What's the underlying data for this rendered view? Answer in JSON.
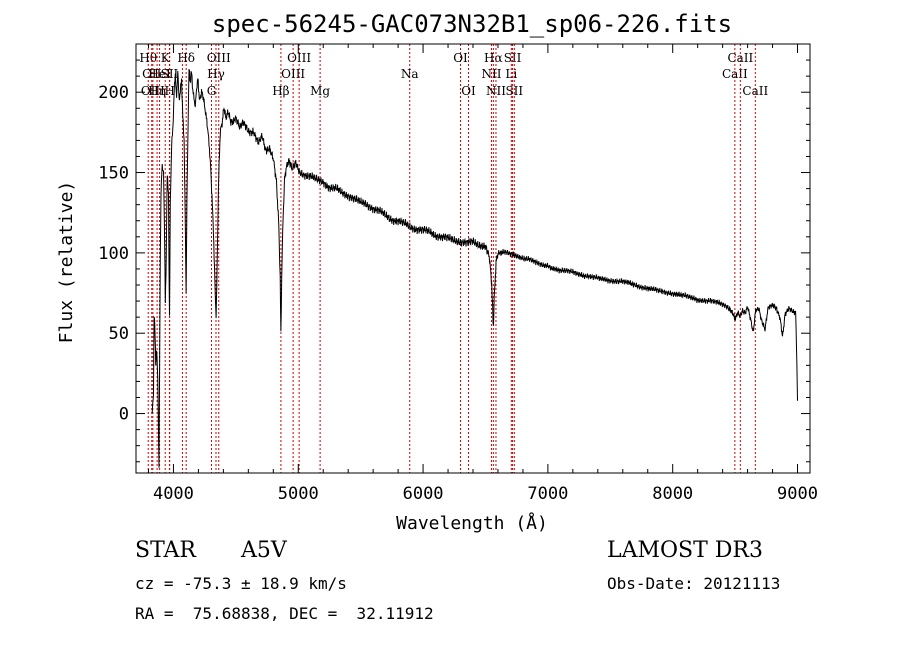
{
  "chart_data": {
    "type": "line",
    "title": "spec-56245-GAC073N32B1_sp06-226.fits",
    "xlabel": "Wavelength (Å)",
    "ylabel": "Flux (relative)",
    "xlim": [
      3700,
      9100
    ],
    "ylim": [
      -37,
      230
    ],
    "xticks": [
      4000,
      5000,
      6000,
      7000,
      8000,
      9000
    ],
    "xtick_labels": [
      "4000",
      "5000",
      "6000",
      "7000",
      "8000",
      "9000"
    ],
    "yticks": [
      0,
      50,
      100,
      150,
      200
    ],
    "ytick_labels": [
      "0",
      "50",
      "100",
      "150",
      "200"
    ],
    "series": [
      {
        "name": "spectrum",
        "points": [
          [
            3830,
            2
          ],
          [
            3840,
            10
          ],
          [
            3845,
            62
          ],
          [
            3850,
            58
          ],
          [
            3858,
            30
          ],
          [
            3865,
            42
          ],
          [
            3875,
            20
          ],
          [
            3884,
            -35
          ],
          [
            3890,
            35
          ],
          [
            3895,
            100
          ],
          [
            3900,
            138
          ],
          [
            3910,
            155
          ],
          [
            3920,
            150
          ],
          [
            3930,
            105
          ],
          [
            3935,
            70
          ],
          [
            3940,
            85
          ],
          [
            3950,
            150
          ],
          [
            3960,
            135
          ],
          [
            3968,
            60
          ],
          [
            3975,
            130
          ],
          [
            3985,
            168
          ],
          [
            3995,
            175
          ],
          [
            4005,
            200
          ],
          [
            4015,
            212
          ],
          [
            4025,
            195
          ],
          [
            4035,
            215
          ],
          [
            4045,
            195
          ],
          [
            4055,
            200
          ],
          [
            4065,
            208
          ],
          [
            4075,
            185
          ],
          [
            4085,
            170
          ],
          [
            4095,
            118
          ],
          [
            4101,
            76
          ],
          [
            4108,
            130
          ],
          [
            4118,
            185
          ],
          [
            4125,
            215
          ],
          [
            4135,
            206
          ],
          [
            4145,
            212
          ],
          [
            4155,
            202
          ],
          [
            4165,
            196
          ],
          [
            4175,
            190
          ],
          [
            4185,
            203
          ],
          [
            4195,
            208
          ],
          [
            4210,
            194
          ],
          [
            4225,
            200
          ],
          [
            4240,
            196
          ],
          [
            4255,
            188
          ],
          [
            4270,
            180
          ],
          [
            4285,
            168
          ],
          [
            4300,
            150
          ],
          [
            4320,
            115
          ],
          [
            4335,
            74
          ],
          [
            4342,
            60
          ],
          [
            4350,
            90
          ],
          [
            4360,
            140
          ],
          [
            4375,
            175
          ],
          [
            4390,
            180
          ],
          [
            4405,
            190
          ],
          [
            4420,
            183
          ],
          [
            4440,
            188
          ],
          [
            4460,
            182
          ],
          [
            4480,
            181
          ],
          [
            4500,
            184
          ],
          [
            4530,
            178
          ],
          [
            4560,
            181
          ],
          [
            4600,
            175
          ],
          [
            4640,
            176
          ],
          [
            4680,
            168
          ],
          [
            4710,
            172
          ],
          [
            4740,
            163
          ],
          [
            4770,
            164
          ],
          [
            4800,
            158
          ],
          [
            4825,
            145
          ],
          [
            4845,
            115
          ],
          [
            4855,
            85
          ],
          [
            4861,
            50
          ],
          [
            4867,
            85
          ],
          [
            4878,
            120
          ],
          [
            4890,
            145
          ],
          [
            4905,
            153
          ],
          [
            4925,
            157
          ],
          [
            4950,
            152
          ],
          [
            4980,
            156
          ],
          [
            5010,
            150
          ],
          [
            5050,
            149
          ],
          [
            5100,
            148
          ],
          [
            5150,
            145
          ],
          [
            5200,
            144
          ],
          [
            5250,
            141
          ],
          [
            5300,
            140
          ],
          [
            5350,
            137
          ],
          [
            5400,
            136
          ],
          [
            5450,
            134
          ],
          [
            5500,
            131
          ],
          [
            5550,
            130
          ],
          [
            5600,
            128
          ],
          [
            5650,
            126
          ],
          [
            5700,
            123
          ],
          [
            5750,
            121
          ],
          [
            5800,
            120
          ],
          [
            5850,
            118
          ],
          [
            5900,
            116
          ],
          [
            5950,
            115
          ],
          [
            6000,
            114
          ],
          [
            6050,
            113
          ],
          [
            6100,
            111
          ],
          [
            6150,
            110
          ],
          [
            6200,
            109
          ],
          [
            6250,
            108
          ],
          [
            6300,
            107
          ],
          [
            6350,
            106
          ],
          [
            6400,
            107
          ],
          [
            6450,
            105
          ],
          [
            6500,
            104
          ],
          [
            6530,
            98
          ],
          [
            6550,
            80
          ],
          [
            6560,
            58
          ],
          [
            6564,
            55
          ],
          [
            6570,
            72
          ],
          [
            6585,
            95
          ],
          [
            6600,
            100
          ],
          [
            6650,
            101
          ],
          [
            6700,
            99
          ],
          [
            6750,
            98
          ],
          [
            6800,
            97
          ],
          [
            6850,
            96
          ],
          [
            6900,
            94
          ],
          [
            6950,
            93
          ],
          [
            7000,
            92
          ],
          [
            7100,
            89
          ],
          [
            7200,
            88
          ],
          [
            7300,
            86
          ],
          [
            7400,
            84
          ],
          [
            7500,
            83
          ],
          [
            7600,
            82
          ],
          [
            7700,
            80
          ],
          [
            7800,
            78
          ],
          [
            7900,
            76
          ],
          [
            8000,
            75
          ],
          [
            8100,
            73
          ],
          [
            8200,
            71
          ],
          [
            8300,
            70
          ],
          [
            8400,
            68
          ],
          [
            8450,
            65
          ],
          [
            8480,
            62
          ],
          [
            8500,
            59
          ],
          [
            8520,
            63
          ],
          [
            8540,
            60
          ],
          [
            8560,
            64
          ],
          [
            8580,
            63
          ],
          [
            8600,
            66
          ],
          [
            8620,
            60
          ],
          [
            8645,
            50
          ],
          [
            8665,
            64
          ],
          [
            8690,
            65
          ],
          [
            8710,
            58
          ],
          [
            8740,
            52
          ],
          [
            8765,
            66
          ],
          [
            8800,
            67
          ],
          [
            8830,
            65
          ],
          [
            8860,
            59
          ],
          [
            8880,
            48
          ],
          [
            8900,
            62
          ],
          [
            8930,
            66
          ],
          [
            8960,
            64
          ],
          [
            8985,
            63
          ],
          [
            8995,
            30
          ],
          [
            9000,
            8
          ]
        ]
      }
    ],
    "line_markers": [
      {
        "wavelength": 3798,
        "label": "Hθ",
        "row": 0
      },
      {
        "wavelength": 3826,
        "label": "OII",
        "row": 1
      },
      {
        "wavelength": 3835,
        "label": "OIII",
        "row": 2
      },
      {
        "wavelength": 3869,
        "label": "Hη",
        "row": 2
      },
      {
        "wavelength": 3889,
        "label": "HeI",
        "row": 1
      },
      {
        "wavelength": 3934,
        "label": "K",
        "row": 0
      },
      {
        "wavelength": 3968,
        "label": "SII",
        "row": 1
      },
      {
        "wavelength": 3970,
        "label": "H",
        "row": 2
      },
      {
        "wavelength": 4102,
        "label": "Hδ",
        "row": 0
      },
      {
        "wavelength": 4072,
        "label": "",
        "row": -1
      },
      {
        "wavelength": 4305,
        "label": "G",
        "row": 2
      },
      {
        "wavelength": 4341,
        "label": "Hγ",
        "row": 1
      },
      {
        "wavelength": 4363,
        "label": "OIII",
        "row": 0
      },
      {
        "wavelength": 4861,
        "label": "Hβ",
        "row": 2
      },
      {
        "wavelength": 4959,
        "label": "OIII",
        "row": 1
      },
      {
        "wavelength": 5007,
        "label": "OIII",
        "row": 0
      },
      {
        "wavelength": 5175,
        "label": "Mg",
        "row": 2
      },
      {
        "wavelength": 5893,
        "label": "Na",
        "row": 1
      },
      {
        "wavelength": 6300,
        "label": "OI",
        "row": 0
      },
      {
        "wavelength": 6364,
        "label": "OI",
        "row": 2
      },
      {
        "wavelength": 6548,
        "label": "NII",
        "row": 1
      },
      {
        "wavelength": 6563,
        "label": "Hα",
        "row": 0
      },
      {
        "wavelength": 6584,
        "label": "NII",
        "row": 2
      },
      {
        "wavelength": 6707,
        "label": "Li",
        "row": 1
      },
      {
        "wavelength": 6717,
        "label": "SII",
        "row": 0
      },
      {
        "wavelength": 6731,
        "label": "SII",
        "row": 2
      },
      {
        "wavelength": 8498,
        "label": "CaII",
        "row": 1
      },
      {
        "wavelength": 8542,
        "label": "CaII",
        "row": 0
      },
      {
        "wavelength": 8662,
        "label": "CaII",
        "row": 2
      }
    ],
    "colors": {
      "line": "#000000",
      "markers": "#d00000",
      "axes": "#000000",
      "background": "#ffffff"
    }
  },
  "info": {
    "object_class": "STAR",
    "subclass": "A5V",
    "survey": "LAMOST DR3",
    "redshift": "cz = -75.3 ± 18.9 km/s",
    "obs_date": "Obs-Date: 20121113",
    "coords": "RA =  75.68838, DEC =  32.11912"
  }
}
